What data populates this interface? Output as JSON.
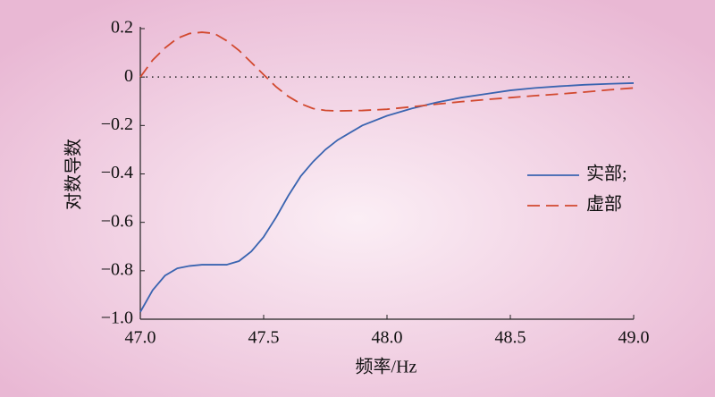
{
  "chart_data": {
    "type": "line",
    "xlabel": "频率/Hz",
    "ylabel": "对数导数",
    "x": [
      47.0,
      47.05,
      47.1,
      47.15,
      47.2,
      47.25,
      47.3,
      47.35,
      47.4,
      47.45,
      47.5,
      47.55,
      47.6,
      47.65,
      47.7,
      47.75,
      47.8,
      47.9,
      48.0,
      48.1,
      48.2,
      48.3,
      48.4,
      48.5,
      48.6,
      48.7,
      48.8,
      48.9,
      49.0
    ],
    "series": [
      {
        "name": "实部;",
        "color": "#3a64b0",
        "dash": false,
        "values": [
          -0.97,
          -0.88,
          -0.82,
          -0.79,
          -0.78,
          -0.775,
          -0.775,
          -0.775,
          -0.76,
          -0.72,
          -0.66,
          -0.58,
          -0.49,
          -0.41,
          -0.35,
          -0.3,
          -0.26,
          -0.2,
          -0.16,
          -0.13,
          -0.105,
          -0.085,
          -0.07,
          -0.055,
          -0.045,
          -0.038,
          -0.032,
          -0.028,
          -0.025
        ]
      },
      {
        "name": "虚部",
        "color": "#d2492f",
        "dash": true,
        "values": [
          0,
          0.07,
          0.12,
          0.16,
          0.18,
          0.185,
          0.18,
          0.15,
          0.11,
          0.06,
          0.01,
          -0.04,
          -0.08,
          -0.11,
          -0.13,
          -0.138,
          -0.14,
          -0.138,
          -0.133,
          -0.123,
          -0.112,
          -0.102,
          -0.093,
          -0.085,
          -0.077,
          -0.07,
          -0.062,
          -0.053,
          -0.045
        ]
      }
    ],
    "reference_line": 0,
    "xlim": [
      47.0,
      49.0
    ],
    "xticks": [
      {
        "value": 47.0,
        "label": "47.0"
      },
      47.5,
      {
        "value": 48.0,
        "label": "48.0"
      },
      48.5,
      {
        "value": 49.0,
        "label": "49.0"
      }
    ],
    "ylim": [
      -1.0,
      0.2
    ],
    "yticks": [
      {
        "value": -1.0,
        "label": "−1.0"
      },
      {
        "value": -0.8,
        "label": "−0.8"
      },
      {
        "value": -0.6,
        "label": "−0.6"
      },
      {
        "value": -0.4,
        "label": "−0.4"
      },
      {
        "value": -0.2,
        "label": "−0.2"
      },
      0,
      0.2
    ],
    "legend": "right"
  }
}
